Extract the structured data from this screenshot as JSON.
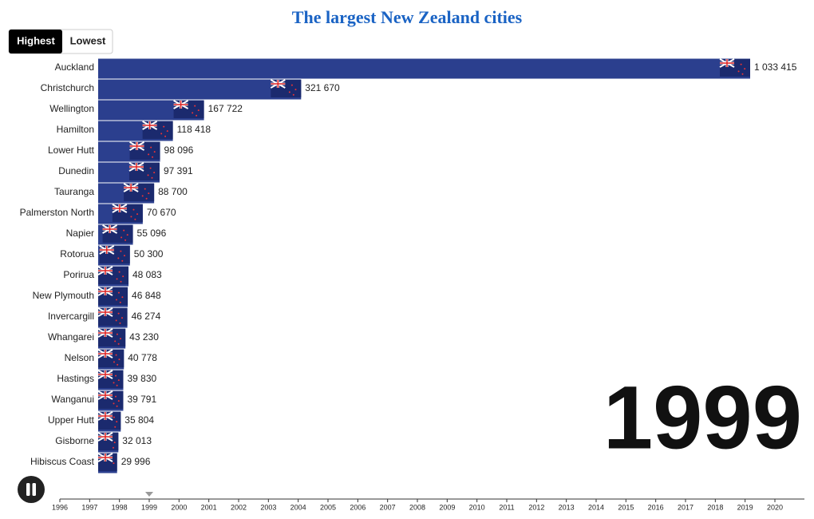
{
  "chart_data": {
    "type": "bar",
    "orientation": "horizontal",
    "title": "The largest New Zealand cities",
    "buttons": [
      "Highest",
      "Lowest"
    ],
    "categories": [
      "Auckland",
      "Christchurch",
      "Wellington",
      "Hamilton",
      "Lower Hutt",
      "Dunedin",
      "Tauranga",
      "Palmerston North",
      "Napier",
      "Rotorua",
      "Porirua",
      "New Plymouth",
      "Invercargill",
      "Whangarei",
      "Nelson",
      "Hastings",
      "Wanganui",
      "Upper Hutt",
      "Gisborne",
      "Hibiscus Coast"
    ],
    "values": [
      1033415,
      321670,
      167722,
      118418,
      98096,
      97391,
      88700,
      70670,
      55096,
      50300,
      48083,
      46848,
      46274,
      43230,
      40778,
      39830,
      39791,
      35804,
      32013,
      29996
    ],
    "value_labels": [
      "1 033 415",
      "321 670",
      "167 722",
      "118 418",
      "98 096",
      "97 391",
      "88 700",
      "70 670",
      "55 096",
      "50 300",
      "48 083",
      "46 848",
      "46 274",
      "43 230",
      "40 778",
      "39 830",
      "39 791",
      "35 804",
      "32 013",
      "29 996"
    ],
    "color": "#2b3f8e",
    "year": 1999,
    "timeline": {
      "xlim": [
        1996,
        2020
      ],
      "xticks": [
        1996,
        1997,
        1998,
        1999,
        2000,
        2001,
        2002,
        2003,
        2004,
        2005,
        2006,
        2007,
        2008,
        2009,
        2010,
        2011,
        2012,
        2013,
        2014,
        2015,
        2016,
        2017,
        2018,
        2019,
        2020
      ]
    }
  }
}
